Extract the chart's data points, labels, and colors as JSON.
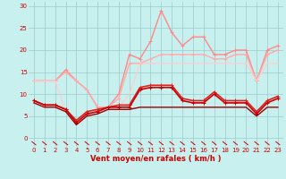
{
  "xlabel": "Vent moyen/en rafales ( km/h )",
  "background_color": "#c8f0ee",
  "grid_color": "#99cccc",
  "xlim": [
    -0.5,
    23.5
  ],
  "ylim": [
    -2,
    31
  ],
  "yticks": [
    0,
    5,
    10,
    15,
    20,
    25,
    30
  ],
  "xticks": [
    0,
    1,
    2,
    3,
    4,
    5,
    6,
    7,
    8,
    9,
    10,
    11,
    12,
    13,
    14,
    15,
    16,
    17,
    18,
    19,
    20,
    21,
    22,
    23
  ],
  "series": [
    {
      "name": "rafales_max",
      "color": "#ff8888",
      "linewidth": 1.0,
      "marker": "+",
      "markersize": 3,
      "data_x": [
        0,
        1,
        2,
        3,
        4,
        5,
        6,
        7,
        8,
        9,
        10,
        11,
        12,
        13,
        14,
        15,
        16,
        17,
        18,
        19,
        20,
        21,
        22,
        23
      ],
      "data_y": [
        13,
        13,
        13,
        15.5,
        13,
        11,
        7,
        7,
        10,
        19,
        18,
        22,
        29,
        24,
        21,
        23,
        23,
        19,
        19,
        20,
        20,
        13,
        20,
        21
      ]
    },
    {
      "name": "rafales_moy",
      "color": "#ffaaaa",
      "linewidth": 1.0,
      "marker": "+",
      "markersize": 3,
      "data_x": [
        0,
        1,
        2,
        3,
        4,
        5,
        6,
        7,
        8,
        9,
        10,
        11,
        12,
        13,
        14,
        15,
        16,
        17,
        18,
        19,
        20,
        21,
        22,
        23
      ],
      "data_y": [
        13,
        13,
        13,
        15,
        13,
        11,
        7,
        7,
        9,
        17,
        17,
        18,
        19,
        19,
        19,
        19,
        19,
        18,
        18,
        19,
        19,
        13,
        19,
        20
      ]
    },
    {
      "name": "rafales_min",
      "color": "#ffcccc",
      "linewidth": 0.9,
      "marker": null,
      "markersize": 0,
      "data_x": [
        0,
        1,
        2,
        3,
        4,
        5,
        6,
        7,
        8,
        9,
        10,
        11,
        12,
        13,
        14,
        15,
        16,
        17,
        18,
        19,
        20,
        21,
        22,
        23
      ],
      "data_y": [
        13,
        13,
        13,
        6,
        3,
        5,
        6.5,
        7,
        7,
        10,
        17,
        17,
        17,
        17,
        17,
        17,
        17,
        17,
        17,
        17,
        17,
        13,
        17,
        17
      ]
    },
    {
      "name": "vent_max",
      "color": "#dd2222",
      "linewidth": 1.2,
      "marker": "+",
      "markersize": 3,
      "data_x": [
        0,
        1,
        2,
        3,
        4,
        5,
        6,
        7,
        8,
        9,
        10,
        11,
        12,
        13,
        14,
        15,
        16,
        17,
        18,
        19,
        20,
        21,
        22,
        23
      ],
      "data_y": [
        8.5,
        7.5,
        7.5,
        6.5,
        4,
        6,
        6.5,
        7,
        7.5,
        7.5,
        11.5,
        12,
        12,
        12,
        9,
        8.5,
        8.5,
        10.5,
        8.5,
        8.5,
        8.5,
        6,
        8.5,
        9.5
      ]
    },
    {
      "name": "vent_moy",
      "color": "#cc0000",
      "linewidth": 1.2,
      "marker": "+",
      "markersize": 3,
      "data_x": [
        0,
        1,
        2,
        3,
        4,
        5,
        6,
        7,
        8,
        9,
        10,
        11,
        12,
        13,
        14,
        15,
        16,
        17,
        18,
        19,
        20,
        21,
        22,
        23
      ],
      "data_y": [
        8.5,
        7.5,
        7.5,
        6.5,
        3.5,
        5.5,
        6,
        7,
        7,
        7,
        11,
        11.5,
        11.5,
        11.5,
        8.5,
        8,
        8,
        10,
        8,
        8,
        8,
        5.5,
        8,
        9
      ]
    },
    {
      "name": "vent_min",
      "color": "#990000",
      "linewidth": 1.0,
      "marker": null,
      "markersize": 0,
      "data_x": [
        0,
        1,
        2,
        3,
        4,
        5,
        6,
        7,
        8,
        9,
        10,
        11,
        12,
        13,
        14,
        15,
        16,
        17,
        18,
        19,
        20,
        21,
        22,
        23
      ],
      "data_y": [
        8,
        7,
        7,
        6,
        3,
        5,
        5.5,
        6.5,
        6.5,
        6.5,
        7,
        7,
        7,
        7,
        7,
        7,
        7,
        7,
        7,
        7,
        7,
        5,
        7,
        7
      ]
    }
  ],
  "arrow_color": "#cc0000",
  "xlabel_color": "#cc0000",
  "tick_color": "#cc0000",
  "tick_fontsize": 5,
  "xlabel_fontsize": 6
}
